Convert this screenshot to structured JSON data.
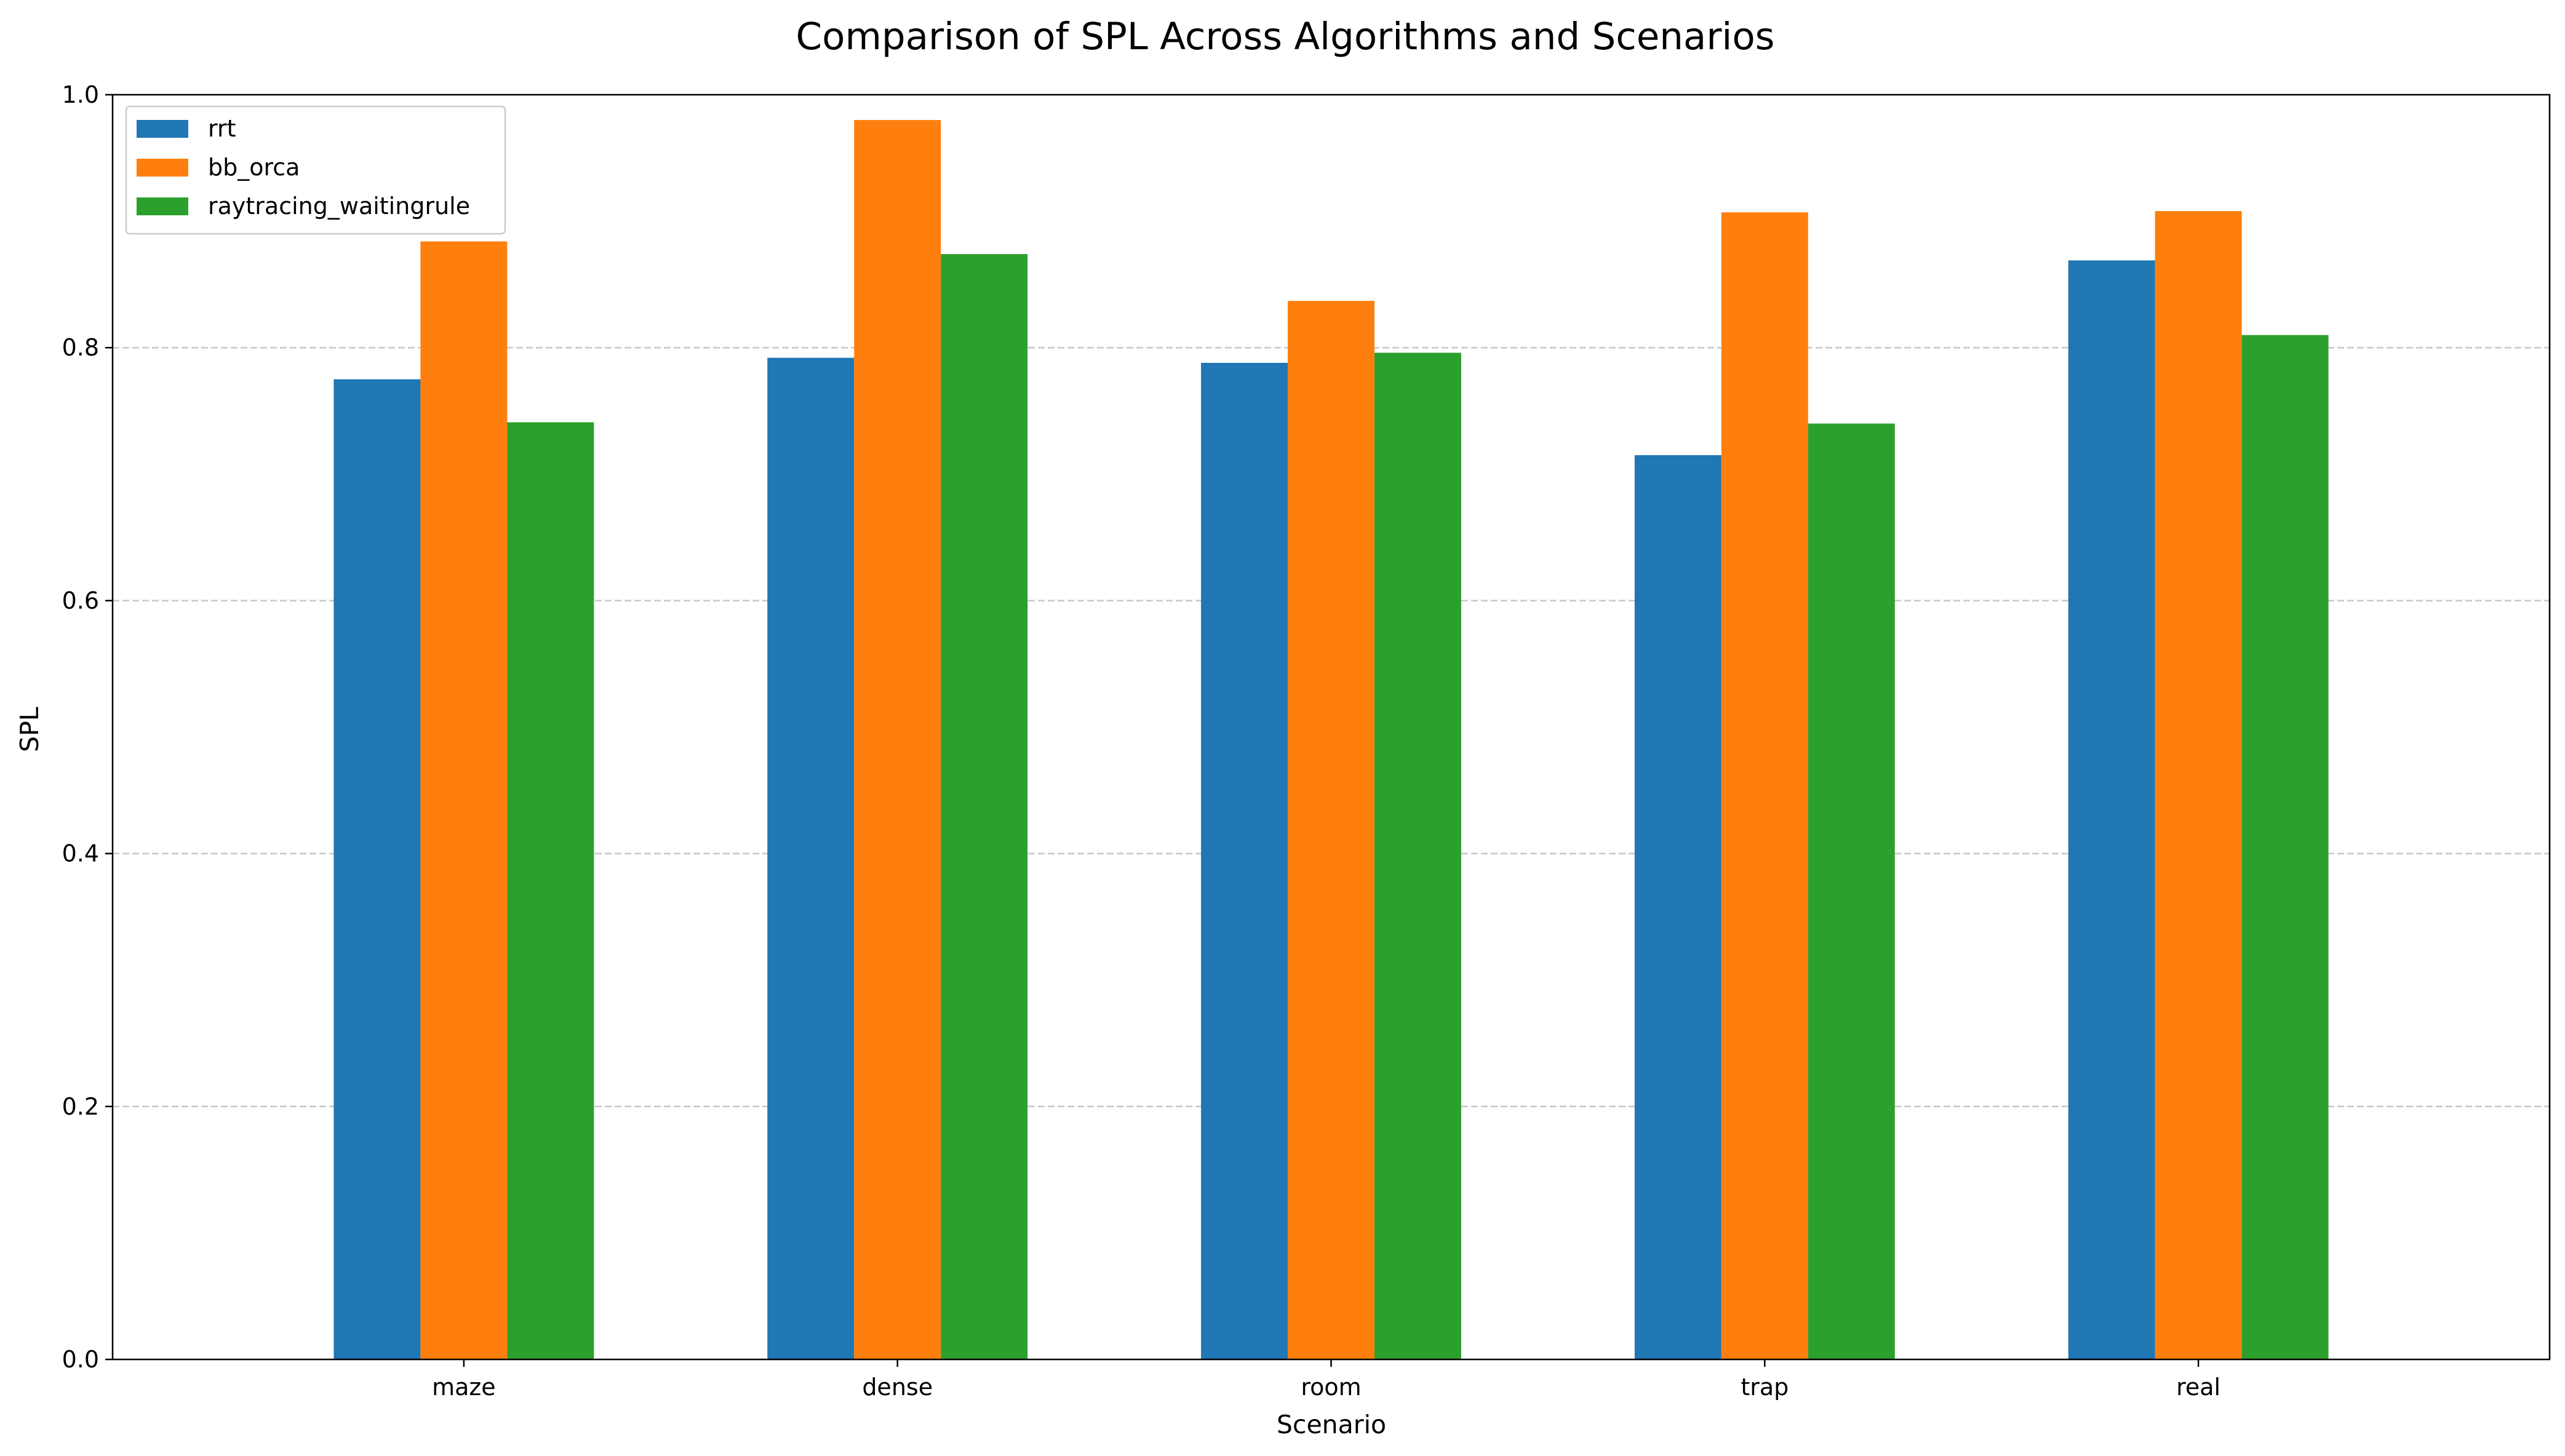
{
  "chart_data": {
    "type": "bar",
    "title": "Comparison of SPL Across Algorithms and Scenarios",
    "xlabel": "Scenario",
    "ylabel": "SPL",
    "categories": [
      "maze",
      "dense",
      "room",
      "trap",
      "real"
    ],
    "series": [
      {
        "name": "rrt",
        "color": "#1f77b4",
        "values": [
          0.775,
          0.792,
          0.788,
          0.715,
          0.869
        ]
      },
      {
        "name": "bb_orca",
        "color": "#ff7f0e",
        "values": [
          0.884,
          0.98,
          0.837,
          0.907,
          0.908
        ]
      },
      {
        "name": "raytracing_waitingrule",
        "color": "#2ca02c",
        "values": [
          0.741,
          0.874,
          0.796,
          0.74,
          0.81
        ]
      }
    ],
    "ylim": [
      0,
      1.0
    ],
    "yticks": [
      0.0,
      0.2,
      0.4,
      0.6,
      0.8,
      1.0
    ],
    "ytick_labels": [
      "0.0",
      "0.2",
      "0.4",
      "0.6",
      "0.8",
      "1.0"
    ],
    "grid": "y-dashed",
    "legend_position": "upper-left"
  }
}
